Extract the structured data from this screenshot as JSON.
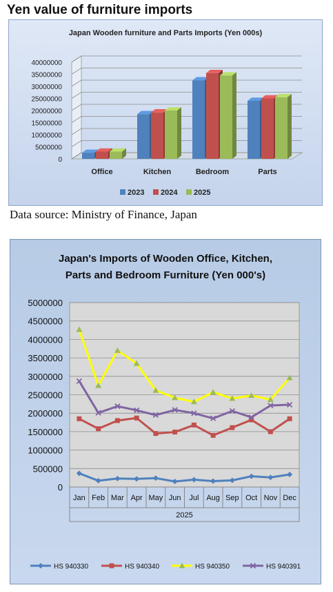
{
  "heading": "Yen value of furniture imports",
  "source": "Data source: Ministry of Finance, Japan",
  "chart_data": [
    {
      "type": "bar",
      "title": "Japan Wooden furniture and Parts Imports (Yen 000s)",
      "categories": [
        "Office",
        "Kitchen",
        "Bedroom",
        "Parts"
      ],
      "series": [
        {
          "name": "2023",
          "color": "#4f81bd",
          "values": [
            2500000,
            18500000,
            32500000,
            24000000
          ]
        },
        {
          "name": "2024",
          "color": "#c0504d",
          "values": [
            3000000,
            19200000,
            35500000,
            25000000
          ]
        },
        {
          "name": "2025",
          "color": "#9bbb59",
          "values": [
            3000000,
            20000000,
            34500000,
            25500000
          ]
        }
      ],
      "ylim": [
        0,
        40000000
      ],
      "yticks": [
        "0",
        "5000000",
        "10000000",
        "15000000",
        "20000000",
        "25000000",
        "30000000",
        "35000000",
        "40000000"
      ],
      "legend": "bottom",
      "grid": true
    },
    {
      "type": "line",
      "title_lines": [
        "Japan's Imports of  Wooden  Office, Kitchen,",
        "Parts and Bedroom Furniture (Yen 000's)"
      ],
      "categories": [
        "Jan",
        "Feb",
        "Mar",
        "Apr",
        "May",
        "Jun",
        "Jul",
        "Aug",
        "Sep",
        "Oct",
        "Nov",
        "Dec"
      ],
      "year_label": "2025",
      "series": [
        {
          "name": "HS 940330",
          "color": "#4f81bd",
          "marker": "diamond",
          "values": [
            370000,
            170000,
            230000,
            220000,
            240000,
            150000,
            200000,
            160000,
            180000,
            290000,
            260000,
            340000
          ]
        },
        {
          "name": "HS 940340",
          "color": "#c0504d",
          "marker": "square",
          "values": [
            1850000,
            1580000,
            1800000,
            1870000,
            1450000,
            1490000,
            1680000,
            1400000,
            1610000,
            1820000,
            1500000,
            1850000
          ]
        },
        {
          "name": "HS 940350",
          "color": "#ffff00",
          "marker": "triangle",
          "values": [
            4270000,
            2750000,
            3700000,
            3350000,
            2620000,
            2420000,
            2310000,
            2570000,
            2400000,
            2480000,
            2370000,
            2960000
          ]
        },
        {
          "name": "HS 940391",
          "color": "#8064a2",
          "marker": "x",
          "values": [
            2870000,
            2010000,
            2190000,
            2080000,
            1950000,
            2090000,
            2000000,
            1860000,
            2060000,
            1890000,
            2210000,
            2230000
          ]
        }
      ],
      "ylim": [
        0,
        5000000
      ],
      "yticks": [
        "0",
        "500000",
        "1000000",
        "1500000",
        "2000000",
        "2500000",
        "3000000",
        "3500000",
        "4000000",
        "4500000",
        "5000000"
      ],
      "legend": "bottom",
      "grid": true
    }
  ]
}
